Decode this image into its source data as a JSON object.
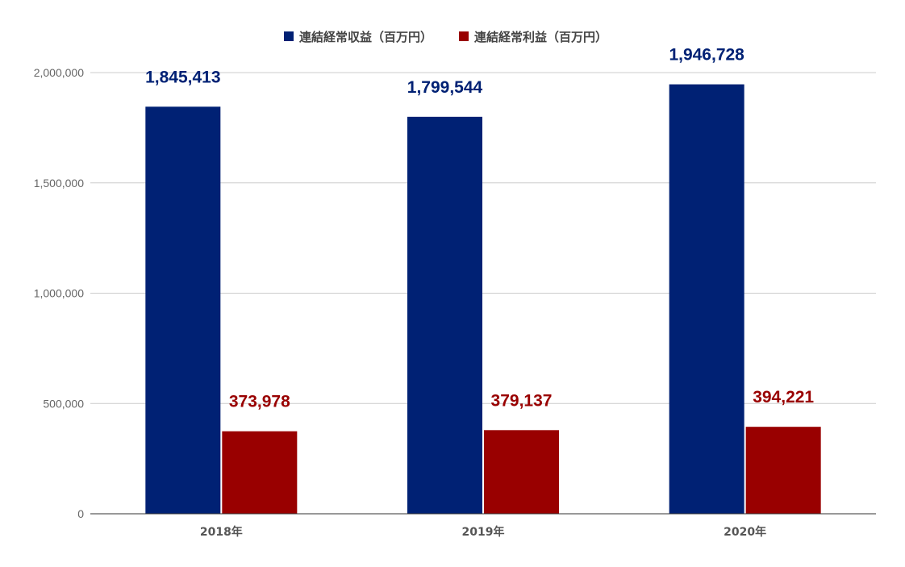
{
  "chart_data": {
    "type": "bar",
    "categories": [
      "2018年",
      "2019年",
      "2020年"
    ],
    "series": [
      {
        "name": "連結経常収益（百万円）",
        "color": "#002174",
        "values": [
          1845413,
          1799544,
          1946728
        ],
        "labels": [
          "1,845,413",
          "1,799,544",
          "1,946,728"
        ]
      },
      {
        "name": "連結経常利益（百万円）",
        "color": "#990000",
        "values": [
          373978,
          379137,
          394221
        ],
        "labels": [
          "373,978",
          "379,137",
          "394,221"
        ]
      }
    ],
    "ylim": [
      0,
      2000000
    ],
    "yticks": [
      {
        "value": 0,
        "label": "0"
      },
      {
        "value": 500000,
        "label": "500,000"
      },
      {
        "value": 1000000,
        "label": "1,000,000"
      },
      {
        "value": 1500000,
        "label": "1,500,000"
      },
      {
        "value": 2000000,
        "label": "2,000,000"
      }
    ],
    "title": "",
    "xlabel": "",
    "ylabel": "",
    "grid": true,
    "legend_position": "top-center"
  }
}
